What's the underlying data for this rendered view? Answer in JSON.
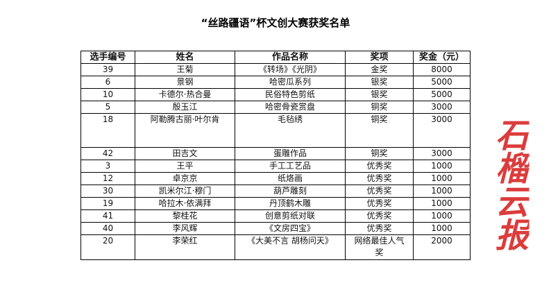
{
  "title": "“丝路疆语”杯文创大赛获奖名单",
  "headers": [
    "选手编号",
    "姓名",
    "作品名称",
    "奖项",
    "奖金（元）"
  ],
  "rows": [
    [
      "39",
      "王菊",
      "《转场》《光阴》",
      "金奖",
      "8000"
    ],
    [
      "6",
      "景钢",
      "哈密瓜系列",
      "银奖",
      "5000"
    ],
    [
      "10",
      "卡德尔·热合曼",
      "民俗特色剪纸",
      "银奖",
      "5000"
    ],
    [
      "5",
      "殷玉江",
      "哈密骨瓷赏盘",
      "铜奖",
      "3000"
    ],
    [
      "18",
      "阿勒腾古丽·叶尔肯",
      "毛毡绣",
      "铜奖",
      "3000"
    ],
    [
      "42",
      "田吉文",
      "蛋雕作品",
      "铜奖",
      "3000"
    ],
    [
      "3",
      "王平",
      "手工工艺品",
      "优秀奖",
      "1000"
    ],
    [
      "12",
      "卓京京",
      "纸烙画",
      "优秀奖",
      "1000"
    ],
    [
      "30",
      "凯米尔江·穆门",
      "葫芦雕刻",
      "优秀奖",
      "1000"
    ],
    [
      "19",
      "哈拉木·依满拜",
      "丹顶鹤木雕",
      "优秀奖",
      "1000"
    ],
    [
      "41",
      "黎桂花",
      "创意剪纸对联",
      "优秀奖",
      "1000"
    ],
    [
      "40",
      "李风辉",
      "《文房四宝》",
      "优秀奖",
      "1000"
    ],
    [
      "20",
      "李荣红",
      "《大美不言 胡杨问天》",
      "网络最佳人气奖",
      "2000"
    ]
  ],
  "watermark": "石榴云报",
  "watermark_color": "#dc3c3c"
}
